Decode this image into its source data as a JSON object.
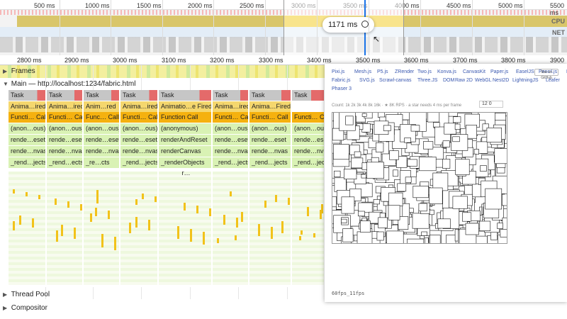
{
  "overview": {
    "ticks": [
      "500 ms",
      "1000 ms",
      "1500 ms",
      "2000 ms",
      "2500 ms",
      "3000 ms",
      "3500 ms",
      "4000 ms",
      "4500 ms",
      "5000 ms",
      "5500 ms"
    ],
    "cpu_label": "CPU",
    "net_label": "NET",
    "tooltip": "1171 ms",
    "zoom_icon": "zoom-in-icon",
    "pointer_icon": "mouse-pointer-icon"
  },
  "ruler": {
    "ticks": [
      "2800 ms",
      "2900 ms",
      "3000 ms",
      "3100 ms",
      "3200 ms",
      "3300 ms",
      "3400 ms",
      "3500 ms",
      "3600 ms",
      "3700 ms",
      "3800 ms",
      "3900 ms"
    ]
  },
  "tracks": {
    "frames": "Frames",
    "main": "Main — http://localhost:1234/fabric.html",
    "thread_pool": "Thread Pool",
    "compositor": "Compositor"
  },
  "flame_columns": [
    {
      "task": "Task",
      "anim": "Anima…ired",
      "func": "Functi… Call",
      "anon": "(anon…ous)",
      "reset": "rende…eset",
      "canvas": "rende…nvas",
      "objects": "_rend…jects",
      "extra": ""
    },
    {
      "task": "Task",
      "anim": "Anima…ired",
      "func": "Functi… Call",
      "anon": "(anon…ous)",
      "reset": "rende…eset",
      "canvas": "rende…nvas",
      "objects": "_rend…ects",
      "extra": ""
    },
    {
      "task": "Task",
      "anim": "Anim…red",
      "func": "Func… Call",
      "anon": "(anon…ous)",
      "reset": "rende…eset",
      "canvas": "rende…nvas",
      "objects": "_re…cts",
      "extra": ""
    },
    {
      "task": "Task",
      "anim": "Anima…ired",
      "func": "Functi… Call",
      "anon": "(anon…ous)",
      "reset": "rende…eset",
      "canvas": "rende…nvas",
      "objects": "_rend…jects",
      "extra": ""
    },
    {
      "task": "Task",
      "anim": "Animatio…e Fired",
      "func": "Function Call",
      "anon": "(anonymous)",
      "reset": "renderAndReset",
      "canvas": "renderCanvas",
      "objects": "_renderObjects",
      "extra": "r…"
    },
    {
      "task": "Task",
      "anim": "Anima…ired",
      "func": "Functi… Call",
      "anon": "(anon…ous)",
      "reset": "rende…eset",
      "canvas": "rende…nvas",
      "objects": "_rend…jects",
      "extra": ""
    },
    {
      "task": "Task",
      "anim": "Anima…Fired",
      "func": "Functi… Call",
      "anon": "(anon…ous)",
      "reset": "rende…eset",
      "canvas": "rende…nvas",
      "objects": "_rend…jects",
      "extra": ""
    },
    {
      "task": "Task",
      "anim": "",
      "func": "Functi… Call",
      "anon": "(anon…ous)",
      "reset": "rende…eset",
      "canvas": "rende…nvas",
      "objects": "_rend…jects",
      "extra": ""
    }
  ],
  "popup": {
    "libs_row1": [
      "Pixi.js",
      "Mesh.js",
      "P5.js",
      "ZRender",
      "Two.js",
      "Konva.js",
      "CanvasKit",
      "Paper.js",
      "EaselJS",
      "Pencil.js",
      "Pts"
    ],
    "libs_row2": [
      "Fabric.js",
      "SVG.js",
      "Scrawl-canvas",
      "Three.JS",
      "DOM",
      "Raw 2D",
      "WebGL",
      "Nest2D",
      "LightningJS",
      "Leafer"
    ],
    "libs_row3": [
      "Phaser 3"
    ],
    "github_badge": "Star on GitHub",
    "count_line": "Count: 1k 2k 3k 4k 8k 16k · ★ 8K RPS · a star needs 4 ms per frame",
    "count_value": "12 0",
    "fps_text": "60fps_11fps"
  },
  "colors": {
    "task": "#c6c6c6",
    "task_warning": "#e46a6a",
    "animation_fired": "#f5d76e",
    "function_call": "#f5b10f",
    "javascript": "#d9f2b4",
    "selection_cursor": "#1a73e8"
  }
}
